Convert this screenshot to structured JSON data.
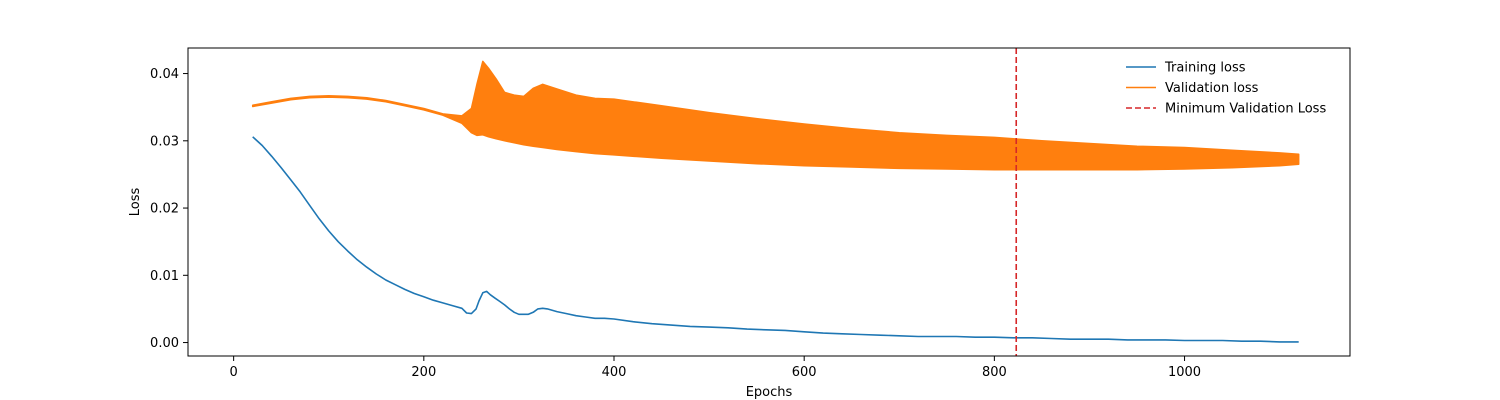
{
  "chart_data": {
    "type": "line",
    "title": "",
    "xlabel": "Epochs",
    "ylabel": "Loss",
    "xlim": [
      -48,
      1174
    ],
    "ylim": [
      -0.002,
      0.0438
    ],
    "xticks": [
      0,
      200,
      400,
      600,
      800,
      1000
    ],
    "xtick_labels": [
      "0",
      "200",
      "400",
      "600",
      "800",
      "1000"
    ],
    "yticks": [
      0.0,
      0.01,
      0.02,
      0.03,
      0.04
    ],
    "ytick_labels": [
      "0.00",
      "0.01",
      "0.02",
      "0.03",
      "0.04"
    ],
    "grid": false,
    "legend": {
      "position": "top-right",
      "entries": [
        {
          "label": "Training loss",
          "color": "#1f77b4",
          "style": "solid"
        },
        {
          "label": "Validation loss",
          "color": "#ff7f0e",
          "style": "solid"
        },
        {
          "label": "Minimum Validation Loss",
          "color": "#d62728",
          "style": "dashed"
        }
      ]
    },
    "series": [
      {
        "name": "Training loss",
        "color": "#1f77b4",
        "x": [
          20,
          30,
          40,
          50,
          60,
          70,
          80,
          90,
          100,
          110,
          120,
          130,
          140,
          150,
          160,
          170,
          180,
          190,
          200,
          210,
          220,
          230,
          240,
          245,
          250,
          255,
          258,
          262,
          266,
          270,
          275,
          280,
          285,
          290,
          295,
          300,
          305,
          310,
          315,
          320,
          325,
          330,
          340,
          350,
          360,
          370,
          380,
          390,
          400,
          420,
          440,
          460,
          480,
          500,
          520,
          540,
          560,
          580,
          600,
          620,
          640,
          660,
          680,
          700,
          720,
          740,
          760,
          780,
          800,
          820,
          840,
          860,
          880,
          900,
          920,
          940,
          960,
          980,
          1000,
          1020,
          1040,
          1060,
          1080,
          1100,
          1120
        ],
        "y": [
          0.0306,
          0.0293,
          0.0277,
          0.026,
          0.0242,
          0.0224,
          0.0204,
          0.0184,
          0.0166,
          0.015,
          0.0136,
          0.0123,
          0.0112,
          0.0102,
          0.0093,
          0.0086,
          0.0079,
          0.0073,
          0.0068,
          0.0063,
          0.0059,
          0.0055,
          0.0051,
          0.0044,
          0.0043,
          0.005,
          0.0062,
          0.0074,
          0.0076,
          0.0071,
          0.0066,
          0.0061,
          0.0056,
          0.005,
          0.0045,
          0.0042,
          0.0042,
          0.0042,
          0.0045,
          0.005,
          0.0051,
          0.005,
          0.0046,
          0.0043,
          0.004,
          0.0038,
          0.0036,
          0.0036,
          0.0035,
          0.0031,
          0.0028,
          0.0026,
          0.0024,
          0.0023,
          0.0022,
          0.002,
          0.0019,
          0.0018,
          0.0016,
          0.0014,
          0.0013,
          0.0012,
          0.0011,
          0.001,
          0.0009,
          0.0009,
          0.0009,
          0.0008,
          0.0008,
          0.0007,
          0.0007,
          0.0006,
          0.0005,
          0.0005,
          0.0005,
          0.0004,
          0.0004,
          0.0004,
          0.0003,
          0.0003,
          0.0003,
          0.0002,
          0.0002,
          0.0001,
          0.0001
        ]
      },
      {
        "name": "Validation loss",
        "color": "#ff7f0e",
        "x": [
          20,
          40,
          60,
          80,
          100,
          120,
          140,
          160,
          180,
          200,
          220,
          240,
          250,
          256,
          262,
          268,
          276,
          285,
          295,
          305,
          315,
          325,
          340,
          360,
          380,
          400,
          450,
          500,
          550,
          600,
          650,
          700,
          750,
          800,
          850,
          900,
          950,
          1000,
          1050,
          1100,
          1120
        ],
        "upper": [
          0.0353,
          0.0358,
          0.0363,
          0.0366,
          0.0367,
          0.0366,
          0.0364,
          0.036,
          0.0354,
          0.0348,
          0.034,
          0.0337,
          0.0348,
          0.0385,
          0.0418,
          0.0408,
          0.0392,
          0.0372,
          0.0368,
          0.0366,
          0.0378,
          0.0384,
          0.0377,
          0.0368,
          0.0363,
          0.0362,
          0.0352,
          0.0342,
          0.0333,
          0.0325,
          0.0318,
          0.0312,
          0.0308,
          0.0305,
          0.03,
          0.0296,
          0.0292,
          0.029,
          0.0286,
          0.0282,
          0.028
        ],
        "lower": [
          0.0351,
          0.0356,
          0.0361,
          0.0364,
          0.0365,
          0.0364,
          0.0362,
          0.0358,
          0.0352,
          0.0346,
          0.0338,
          0.0326,
          0.0312,
          0.0308,
          0.0309,
          0.0306,
          0.0303,
          0.03,
          0.0297,
          0.0294,
          0.0292,
          0.029,
          0.0287,
          0.0284,
          0.0281,
          0.0279,
          0.0274,
          0.027,
          0.0266,
          0.0263,
          0.0261,
          0.0259,
          0.0258,
          0.0257,
          0.0257,
          0.0257,
          0.0257,
          0.0258,
          0.026,
          0.0263,
          0.0265
        ]
      }
    ],
    "vline": {
      "name": "Minimum Validation Loss",
      "x": 823,
      "color": "#d62728",
      "style": "dashed"
    }
  }
}
